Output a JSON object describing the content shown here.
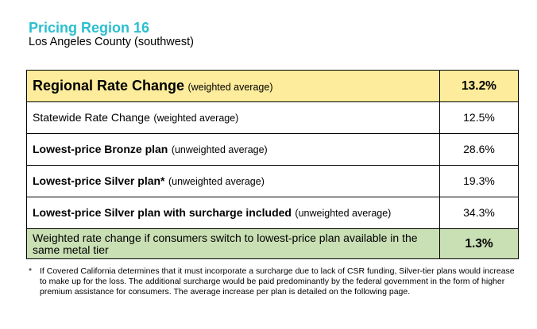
{
  "header": {
    "title": "Pricing Region 16",
    "subtitle": "Los Angeles County (southwest)"
  },
  "table": {
    "rows": [
      {
        "label": "Regional Rate Change",
        "note": "(weighted average)",
        "value": "13.2%"
      },
      {
        "label": "Statewide Rate Change",
        "note": "(weighted average)",
        "value": "12.5%"
      },
      {
        "label": "Lowest-price Bronze plan",
        "note": "(unweighted average)",
        "value": "28.6%"
      },
      {
        "label": "Lowest-price Silver plan*",
        "note": "(unweighted average)",
        "value": "19.3%"
      },
      {
        "label": "Lowest-price Silver plan with surcharge included",
        "note": "(unweighted average)",
        "value": "34.3%"
      },
      {
        "label": "Weighted rate change if consumers switch to lowest-price plan available in the same metal tier",
        "value": "1.3%"
      }
    ]
  },
  "footnote": {
    "marker": "*",
    "text": "If Covered California determines that it must incorporate a surcharge due to lack of CSR funding, Silver-tier plans would increase to make up for the loss. The additional surcharge would be paid predominantly by the federal government in the form of higher premium assistance for consumers. The average increase per plan is detailed on the following page."
  },
  "colors": {
    "title": "#2bbfd0",
    "highlight_row": "#fcec9b",
    "summary_row": "#c9dfb4"
  }
}
